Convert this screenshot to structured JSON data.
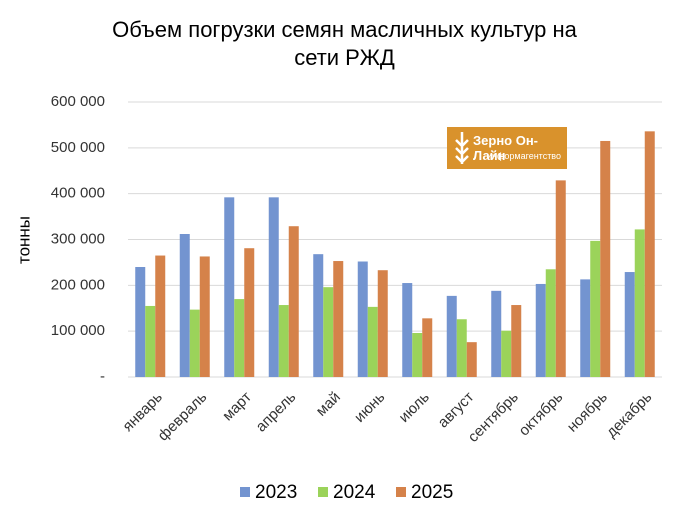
{
  "chart_data": {
    "type": "bar",
    "title": "Объем погрузки семян масличных культур на сети РЖД",
    "y_label": "тонны",
    "categories": [
      "январь",
      "февраль",
      "март",
      "апрель",
      "май",
      "июнь",
      "июль",
      "август",
      "сентябрь",
      "октябрь",
      "ноябрь",
      "декабрь"
    ],
    "series": [
      {
        "name": "2023",
        "color": "#7394d0",
        "values": [
          240000,
          312000,
          392000,
          392000,
          268000,
          252000,
          205000,
          177000,
          188000,
          203000,
          213000,
          229000
        ]
      },
      {
        "name": "2024",
        "color": "#9bd35a",
        "values": [
          155000,
          147000,
          170000,
          157000,
          196000,
          153000,
          96000,
          126000,
          101000,
          235000,
          297000,
          322000
        ]
      },
      {
        "name": "2025",
        "color": "#d5824a",
        "values": [
          265000,
          263000,
          281000,
          329000,
          253000,
          233000,
          128000,
          76000,
          157000,
          429000,
          515000,
          536000
        ]
      }
    ],
    "ylim": [
      0,
      600000
    ],
    "yticks": [
      {
        "value": 0,
        "label": "-"
      },
      {
        "value": 100000,
        "label": "100 000"
      },
      {
        "value": 200000,
        "label": "200 000"
      },
      {
        "value": 300000,
        "label": "300 000"
      },
      {
        "value": 400000,
        "label": "400 000"
      },
      {
        "value": 500000,
        "label": "500 000"
      },
      {
        "value": 600000,
        "label": "600 000"
      }
    ],
    "grid": true,
    "legend": "bottom"
  },
  "logo": {
    "title": "Зерно Он-Лайн",
    "subtitle": "информагентство"
  }
}
